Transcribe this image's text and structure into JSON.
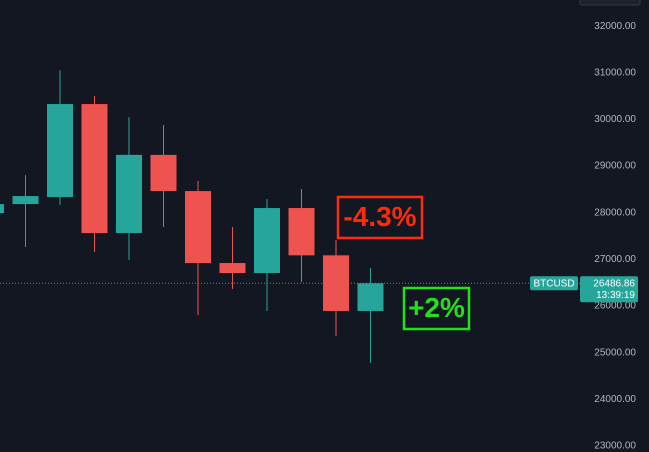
{
  "chart_data": {
    "type": "candlestick",
    "symbol": "BTCUSD",
    "last_price": 26486.86,
    "countdown": "13:39:19",
    "up_color": "#26a69a",
    "down_color": "#ef5350",
    "ylim": [
      22870,
      32560
    ],
    "yticks": [
      {
        "value": 23000,
        "label": "23000.00"
      },
      {
        "value": 24000,
        "label": "24000.00"
      },
      {
        "value": 25000,
        "label": "25000.00"
      },
      {
        "value": 26000,
        "label": "26000.00"
      },
      {
        "value": 27000,
        "label": "27000.00"
      },
      {
        "value": 28000,
        "label": "28000.00"
      },
      {
        "value": 29000,
        "label": "29000.00"
      },
      {
        "value": 30000,
        "label": "30000.00"
      },
      {
        "value": 31000,
        "label": "31000.00"
      },
      {
        "value": 32000,
        "label": "32000.00"
      }
    ],
    "open": [
      27990,
      28185,
      28336,
      30329,
      27564,
      29240,
      28464,
      26921,
      26707,
      28100,
      27086,
      25893
    ],
    "high": [
      28300,
      28807,
      31057,
      30500,
      30050,
      29879,
      28679,
      27693,
      28293,
      28507,
      27414,
      26814
    ],
    "low": [
      27800,
      27264,
      28164,
      27157,
      26986,
      27693,
      25807,
      26364,
      25893,
      26514,
      25357,
      24779
    ],
    "close": [
      28185,
      28357,
      30329,
      27564,
      29240,
      28464,
      26921,
      26707,
      28100,
      27086,
      25893,
      26486.86
    ],
    "annotations": [
      {
        "text": "-4.3%",
        "color": "#ff2a0c"
      },
      {
        "text": "+2%",
        "color": "#22e01a"
      }
    ]
  }
}
